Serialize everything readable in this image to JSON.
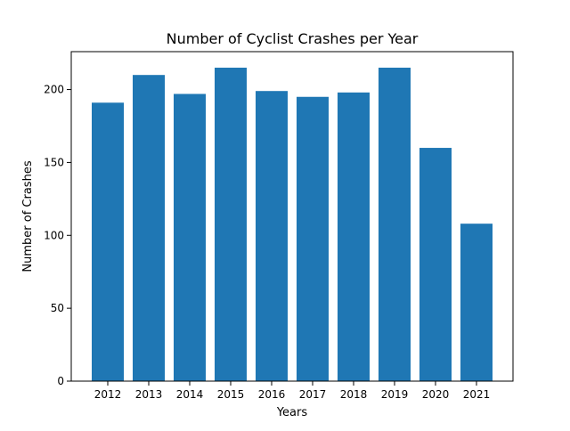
{
  "chart_data": {
    "type": "bar",
    "title": "Number of Cyclist Crashes per Year",
    "xlabel": "Years",
    "ylabel": "Number of Crashes",
    "categories": [
      "2012",
      "2013",
      "2014",
      "2015",
      "2016",
      "2017",
      "2018",
      "2019",
      "2020",
      "2021"
    ],
    "values": [
      191,
      210,
      197,
      215,
      199,
      195,
      198,
      215,
      160,
      108
    ],
    "ylim": [
      0,
      226
    ],
    "yticks": [
      0,
      50,
      100,
      150,
      200
    ],
    "grid": false,
    "legend": "none",
    "bar_color": "#1f77b4"
  }
}
